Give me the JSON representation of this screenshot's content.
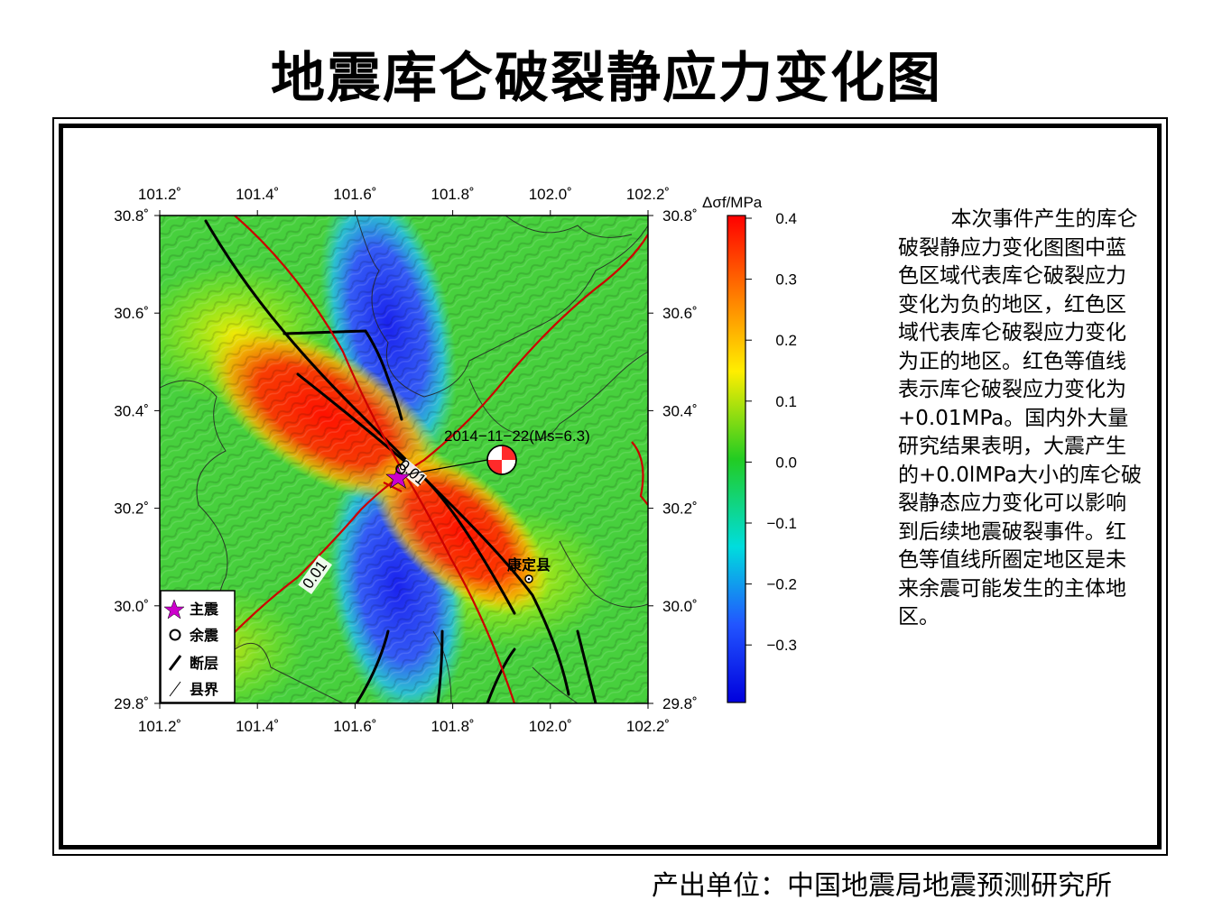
{
  "title": "地震库仑破裂静应力变化图",
  "map": {
    "lon_ticks": [
      "101.2˚",
      "101.4˚",
      "101.6˚",
      "101.8˚",
      "102.0˚",
      "102.2˚"
    ],
    "lat_ticks": [
      "30.8˚",
      "30.6˚",
      "30.4˚",
      "30.2˚",
      "30.0˚",
      "29.8˚"
    ],
    "extent": {
      "lon": [
        101.2,
        102.2
      ],
      "lat": [
        29.8,
        30.8
      ]
    },
    "event_label": "2014−11−22(Ms=6.3)",
    "contour_label_1": "0.01",
    "contour_label_2": "0.01",
    "county": "康定县",
    "legend": [
      {
        "icon": "star-icon",
        "label": "主震"
      },
      {
        "icon": "circle-icon",
        "label": "余震"
      },
      {
        "icon": "fault-line-icon",
        "label": "断层"
      },
      {
        "icon": "county-border-icon",
        "label": "县界"
      }
    ],
    "colors": {
      "positive": "#ff0000",
      "negative": "#1a1aff",
      "contour": "#cc0000",
      "star": "#cc00cc"
    }
  },
  "colorbar": {
    "label": "Δσf/MPa",
    "ticks": [
      "0.4",
      "0.3",
      "0.2",
      "0.1",
      "0.0",
      "−0.1",
      "−0.2",
      "−0.3"
    ]
  },
  "description": "        本次事件产生的库仑破裂静应力变化图图中蓝色区域代表库仑破裂应力变化为负的地区，红色区域代表库仑破裂应力变化为正的地区。红色等值线表示库仑破裂应力变化为+0.01MPa。国内外大量研究结果表明，大震产生的+0.0lMPa大小的库仑破裂静态应力变化可以影响到后续地震破裂事件。红色等值线所圈定地区是未来余震可能发生的主体地区。",
  "footer": "产出单位：中国地震局地震预测研究所"
}
